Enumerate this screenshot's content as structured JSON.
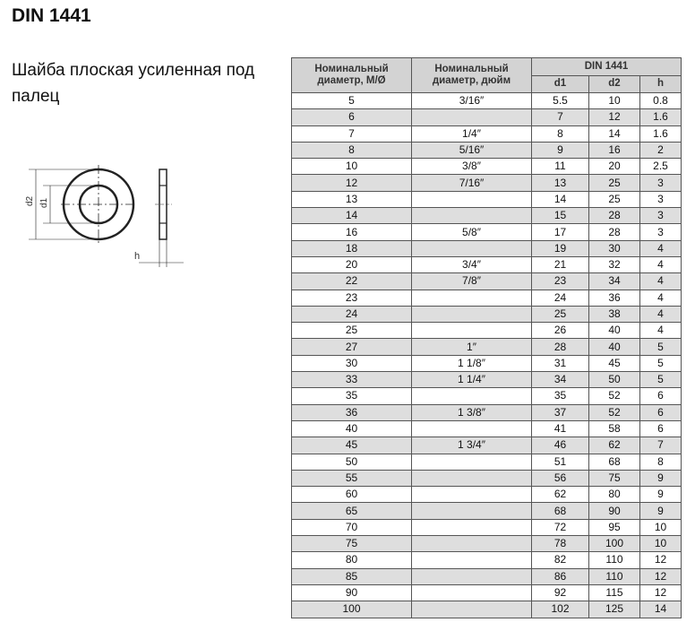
{
  "title": "DIN 1441",
  "subtitle": "Шайба плоская усиленная под палец",
  "drawing": {
    "labels": [
      "d2",
      "d1",
      "h"
    ]
  },
  "table": {
    "headers": {
      "metric": "Номинальный диаметр, M/Ø",
      "inch": "Номинальный диаметр, дюйм",
      "group": "DIN 1441",
      "d1": "d1",
      "d2": "d2",
      "h": "h"
    },
    "rows": [
      [
        "5",
        "3/16″",
        "5.5",
        "10",
        "0.8"
      ],
      [
        "6",
        "",
        "7",
        "12",
        "1.6"
      ],
      [
        "7",
        "1/4″",
        "8",
        "14",
        "1.6"
      ],
      [
        "8",
        "5/16″",
        "9",
        "16",
        "2"
      ],
      [
        "10",
        "3/8″",
        "11",
        "20",
        "2.5"
      ],
      [
        "12",
        "7/16″",
        "13",
        "25",
        "3"
      ],
      [
        "13",
        "",
        "14",
        "25",
        "3"
      ],
      [
        "14",
        "",
        "15",
        "28",
        "3"
      ],
      [
        "16",
        "5/8″",
        "17",
        "28",
        "3"
      ],
      [
        "18",
        "",
        "19",
        "30",
        "4"
      ],
      [
        "20",
        "3/4″",
        "21",
        "32",
        "4"
      ],
      [
        "22",
        "7/8″",
        "23",
        "34",
        "4"
      ],
      [
        "23",
        "",
        "24",
        "36",
        "4"
      ],
      [
        "24",
        "",
        "25",
        "38",
        "4"
      ],
      [
        "25",
        "",
        "26",
        "40",
        "4"
      ],
      [
        "27",
        "1″",
        "28",
        "40",
        "5"
      ],
      [
        "30",
        "1 1/8″",
        "31",
        "45",
        "5"
      ],
      [
        "33",
        "1 1/4″",
        "34",
        "50",
        "5"
      ],
      [
        "35",
        "",
        "35",
        "52",
        "6"
      ],
      [
        "36",
        "1 3/8″",
        "37",
        "52",
        "6"
      ],
      [
        "40",
        "",
        "41",
        "58",
        "6"
      ],
      [
        "45",
        "1 3/4″",
        "46",
        "62",
        "7"
      ],
      [
        "50",
        "",
        "51",
        "68",
        "8"
      ],
      [
        "55",
        "",
        "56",
        "75",
        "9"
      ],
      [
        "60",
        "",
        "62",
        "80",
        "9"
      ],
      [
        "65",
        "",
        "68",
        "90",
        "9"
      ],
      [
        "70",
        "",
        "72",
        "95",
        "10"
      ],
      [
        "75",
        "",
        "78",
        "100",
        "10"
      ],
      [
        "80",
        "",
        "82",
        "110",
        "12"
      ],
      [
        "85",
        "",
        "86",
        "110",
        "12"
      ],
      [
        "90",
        "",
        "92",
        "115",
        "12"
      ],
      [
        "100",
        "",
        "102",
        "125",
        "14"
      ]
    ]
  }
}
